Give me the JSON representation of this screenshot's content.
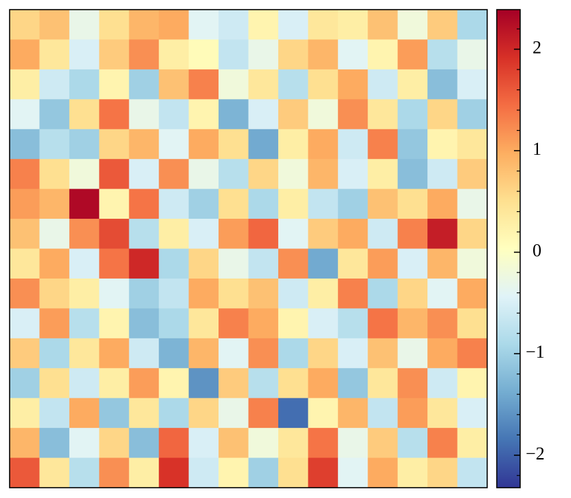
{
  "chart_data": {
    "type": "heatmap",
    "cmap": "RdYlBu_r",
    "values": [
      [
        0.6,
        0.8,
        -0.3,
        0.5,
        0.9,
        1.0,
        -0.4,
        -0.6,
        0.2,
        -0.5,
        0.4,
        0.3,
        0.8,
        -0.2,
        0.7,
        -0.9
      ],
      [
        1.0,
        0.4,
        -0.5,
        0.7,
        1.2,
        0.3,
        0.1,
        -0.7,
        -0.3,
        0.6,
        0.9,
        -0.4,
        0.2,
        1.1,
        -0.8,
        -0.3
      ],
      [
        0.3,
        -0.6,
        -0.9,
        0.2,
        -1.0,
        0.8,
        1.3,
        -0.2,
        0.4,
        -0.8,
        0.5,
        1.0,
        -0.6,
        0.3,
        -1.2,
        -0.5
      ],
      [
        -0.4,
        -1.1,
        0.5,
        1.4,
        -0.3,
        -0.7,
        0.2,
        -1.3,
        -0.5,
        0.7,
        -0.2,
        1.2,
        0.4,
        -0.9,
        0.6,
        -1.0
      ],
      [
        -1.2,
        -0.8,
        -1.0,
        0.6,
        0.9,
        -0.4,
        1.0,
        0.5,
        -1.4,
        0.3,
        1.0,
        -0.6,
        1.3,
        -1.1,
        0.2,
        0.4
      ],
      [
        1.3,
        0.5,
        -0.2,
        1.6,
        -0.5,
        1.2,
        -0.3,
        -0.8,
        0.6,
        -0.2,
        0.9,
        -0.5,
        0.3,
        -1.2,
        -0.6,
        0.7
      ],
      [
        1.1,
        0.9,
        2.3,
        0.2,
        1.4,
        -0.6,
        -1.0,
        0.5,
        -0.9,
        0.3,
        -0.7,
        -1.0,
        0.8,
        0.5,
        1.0,
        -0.3
      ],
      [
        0.8,
        -0.3,
        1.2,
        1.7,
        -0.8,
        0.3,
        -0.5,
        1.1,
        1.5,
        -0.4,
        0.7,
        1.0,
        -0.6,
        1.3,
        2.1,
        0.6
      ],
      [
        0.4,
        1.0,
        -0.5,
        1.4,
        2.0,
        -0.9,
        0.6,
        -0.3,
        -0.7,
        1.2,
        -1.4,
        0.4,
        1.1,
        -0.5,
        0.9,
        -0.2
      ],
      [
        1.2,
        0.6,
        0.3,
        -0.4,
        -1.0,
        -0.7,
        1.0,
        0.5,
        0.8,
        -0.6,
        0.3,
        1.3,
        -0.9,
        0.6,
        -0.4,
        1.0
      ],
      [
        -0.5,
        1.1,
        -0.8,
        0.2,
        -1.2,
        -0.9,
        0.4,
        1.3,
        1.0,
        0.2,
        -0.5,
        -0.8,
        1.4,
        0.9,
        1.2,
        0.5
      ],
      [
        0.7,
        -0.9,
        0.4,
        1.0,
        -0.6,
        -1.3,
        0.9,
        -0.4,
        1.2,
        -0.9,
        0.6,
        -0.5,
        0.8,
        -0.3,
        1.0,
        1.3
      ],
      [
        -1.0,
        0.5,
        -0.6,
        0.3,
        1.1,
        0.2,
        -1.6,
        0.7,
        -0.8,
        0.5,
        1.0,
        -1.1,
        0.4,
        1.2,
        -0.6,
        0.2
      ],
      [
        0.3,
        -0.7,
        1.0,
        -1.1,
        0.4,
        -0.9,
        0.6,
        -0.3,
        1.3,
        -1.9,
        0.2,
        0.9,
        -0.7,
        1.1,
        0.4,
        -0.5
      ],
      [
        0.9,
        -1.2,
        -0.4,
        0.6,
        -1.2,
        1.5,
        -0.5,
        0.8,
        -0.2,
        0.4,
        1.4,
        -0.3,
        0.7,
        -0.8,
        1.3,
        0.3
      ],
      [
        1.6,
        0.4,
        -0.8,
        1.2,
        0.3,
        1.9,
        -0.6,
        0.2,
        -1.0,
        0.5,
        1.8,
        -0.4,
        1.0,
        0.3,
        0.6,
        -0.7
      ]
    ],
    "clim": [
      -2.32,
      2.39
    ],
    "cticks": [
      {
        "value": -2,
        "label": "−2"
      },
      {
        "value": -1,
        "label": "−1"
      },
      0,
      1,
      2
    ],
    "cticks_minor": [
      -2.2,
      -1.8,
      -1.6,
      -1.4,
      -1.2,
      -0.8,
      -0.6,
      -0.4,
      -0.2,
      0.2,
      0.4,
      0.6,
      0.8,
      1.2,
      1.4,
      1.6,
      1.8,
      2.2
    ]
  }
}
